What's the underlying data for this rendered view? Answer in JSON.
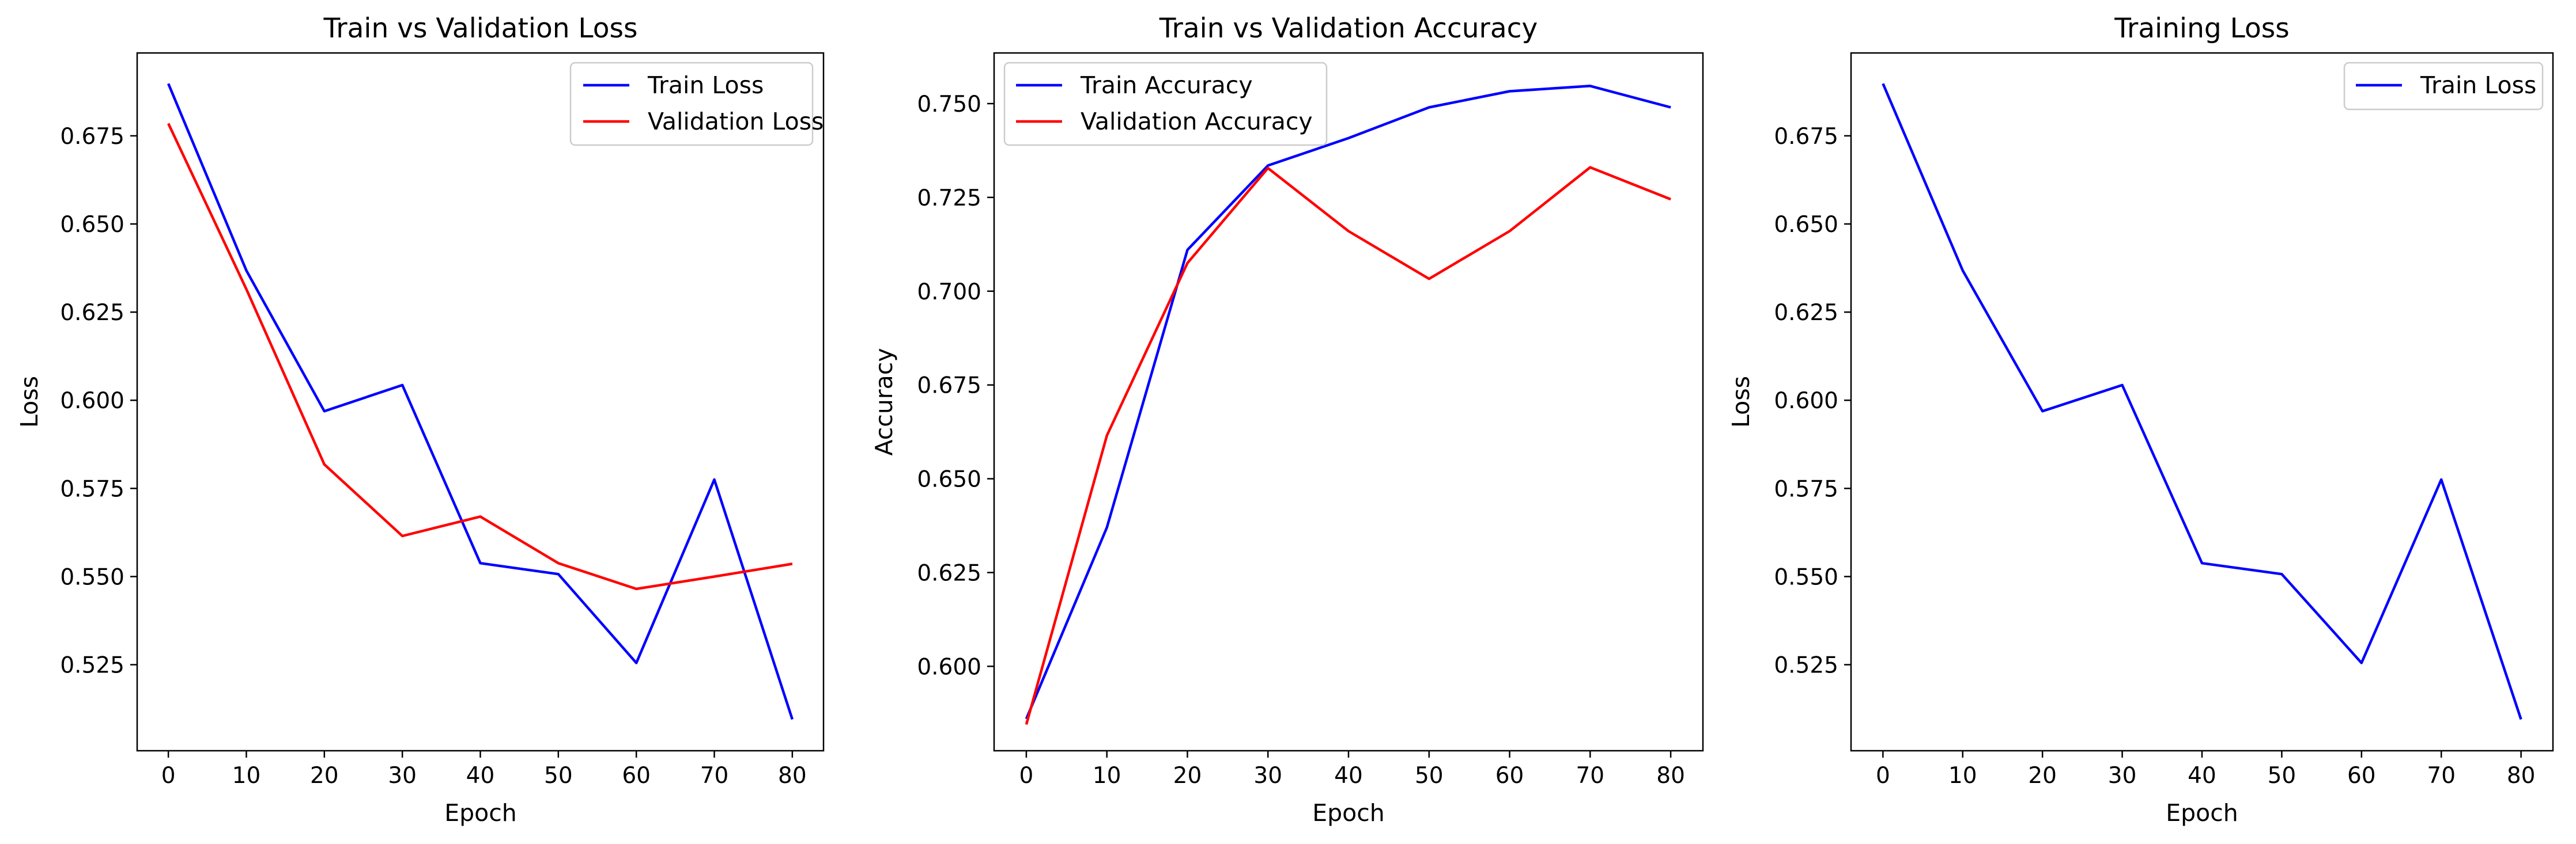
{
  "chart_data": [
    {
      "type": "line",
      "title": "Train vs Validation Loss",
      "xlabel": "Epoch",
      "ylabel": "Loss",
      "x": [
        0,
        10,
        20,
        30,
        40,
        50,
        60,
        70,
        80
      ],
      "xticks": [
        0,
        10,
        20,
        30,
        40,
        50,
        60,
        70,
        80
      ],
      "yticks": [
        0.525,
        0.55,
        0.575,
        0.6,
        0.625,
        0.65,
        0.675
      ],
      "ytick_labels": [
        "0.525",
        "0.550",
        "0.575",
        "0.600",
        "0.625",
        "0.650",
        "0.675"
      ],
      "xlim": [
        -4,
        84
      ],
      "ylim": [
        0.5006,
        0.6985
      ],
      "grid": false,
      "legend_position": "upper right",
      "series": [
        {
          "name": "Train Loss",
          "color": "#0000ff",
          "values": [
            0.6898,
            0.6368,
            0.5969,
            0.6043,
            0.5538,
            0.5507,
            0.5255,
            0.5775,
            0.5095
          ]
        },
        {
          "name": "Validation Loss",
          "color": "#ff0000",
          "values": [
            0.6785,
            0.6315,
            0.5818,
            0.5615,
            0.567,
            0.5538,
            0.5465,
            0.55,
            0.5536
          ]
        }
      ]
    },
    {
      "type": "line",
      "title": "Train vs Validation Accuracy",
      "xlabel": "Epoch",
      "ylabel": "Accuracy",
      "x": [
        0,
        10,
        20,
        30,
        40,
        50,
        60,
        70,
        80
      ],
      "xticks": [
        0,
        10,
        20,
        30,
        40,
        50,
        60,
        70,
        80
      ],
      "yticks": [
        0.6,
        0.625,
        0.65,
        0.675,
        0.7,
        0.725,
        0.75
      ],
      "ytick_labels": [
        "0.600",
        "0.625",
        "0.650",
        "0.675",
        "0.700",
        "0.725",
        "0.750"
      ],
      "xlim": [
        -4,
        84
      ],
      "ylim": [
        0.5775,
        0.7635
      ],
      "grid": false,
      "legend_position": "upper left",
      "series": [
        {
          "name": "Train Accuracy",
          "color": "#0000ff",
          "values": [
            0.586,
            0.637,
            0.711,
            0.7335,
            0.7408,
            0.749,
            0.7533,
            0.7547,
            0.749
          ]
        },
        {
          "name": "Validation Accuracy",
          "color": "#ff0000",
          "values": [
            0.5845,
            0.6615,
            0.7075,
            0.7328,
            0.716,
            0.7033,
            0.716,
            0.733,
            0.7245
          ]
        }
      ]
    },
    {
      "type": "line",
      "title": "Training Loss",
      "xlabel": "Epoch",
      "ylabel": "Loss",
      "x": [
        0,
        10,
        20,
        30,
        40,
        50,
        60,
        70,
        80
      ],
      "xticks": [
        0,
        10,
        20,
        30,
        40,
        50,
        60,
        70,
        80
      ],
      "yticks": [
        0.525,
        0.55,
        0.575,
        0.6,
        0.625,
        0.65,
        0.675
      ],
      "ytick_labels": [
        "0.525",
        "0.550",
        "0.575",
        "0.600",
        "0.625",
        "0.650",
        "0.675"
      ],
      "xlim": [
        -4,
        84
      ],
      "ylim": [
        0.5006,
        0.6985
      ],
      "grid": false,
      "legend_position": "upper right",
      "series": [
        {
          "name": "Train Loss",
          "color": "#0000ff",
          "values": [
            0.6898,
            0.6368,
            0.5969,
            0.6043,
            0.5538,
            0.5507,
            0.5255,
            0.5775,
            0.5095
          ]
        }
      ]
    }
  ]
}
